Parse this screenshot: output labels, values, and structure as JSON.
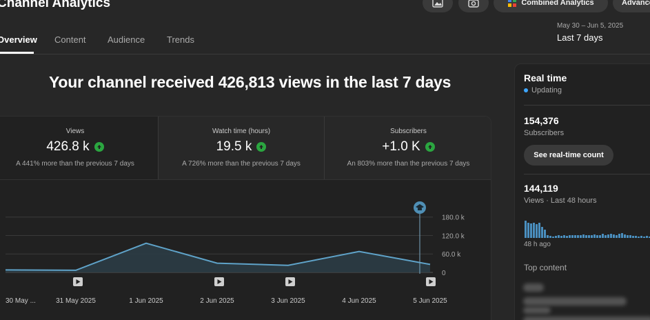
{
  "header": {
    "title": "Channel Analytics",
    "icon_buttons": [
      "image-icon",
      "camera-icon"
    ],
    "combined_analytics_label": "Combined Analytics",
    "advanced_label": "Advanced"
  },
  "tabs": [
    {
      "label": "Overview",
      "active": true
    },
    {
      "label": "Content",
      "active": false
    },
    {
      "label": "Audience",
      "active": false
    },
    {
      "label": "Trends",
      "active": false
    }
  ],
  "date_picker": {
    "range": "May 30 – Jun 5, 2025",
    "label": "Last 7 days"
  },
  "headline": "Your channel received 426,813 views in the last 7 days",
  "metrics": [
    {
      "label": "Views",
      "value": "426.8 k",
      "trend": "up",
      "compare": "A 441% more than the previous 7 days",
      "selected": false
    },
    {
      "label": "Watch time (hours)",
      "value": "19.5 k",
      "trend": "up",
      "compare": "A 726% more than the previous 7 days",
      "selected": true
    },
    {
      "label": "Subscribers",
      "value": "+1.0 K",
      "trend": "up",
      "compare": "An 803% more than the previous 7 days",
      "selected": true
    }
  ],
  "chart_data": {
    "type": "area",
    "x": [
      "30 May ...",
      "31 May 2025",
      "1 Jun 2025",
      "2 Jun 2025",
      "3 Jun 2025",
      "4 Jun 2025",
      "5 Jun 2025"
    ],
    "series": [
      {
        "values": [
          8000,
          7000,
          95000,
          30000,
          23000,
          68000,
          26000
        ]
      }
    ],
    "y_ticks": [
      "180.0 k",
      "120.0 k",
      "60.0 k",
      "0"
    ],
    "ylim": [
      0,
      200000
    ],
    "grid": true,
    "line_color": "#5fa3c9",
    "fill_color": "#2b3d47",
    "video_markers_at": [
      1,
      3,
      4,
      6
    ]
  },
  "realtime": {
    "title": "Real time",
    "status": "Updating",
    "subscribers_count": "154,376",
    "subscribers_label": "Subscribers",
    "button_label": "See real-time count",
    "views_count": "144,119",
    "views_label": "Views · Last 48 hours",
    "hist_values": [
      0.85,
      0.75,
      0.7,
      0.72,
      0.68,
      0.72,
      0.55,
      0.4,
      0.12,
      0.1,
      0.08,
      0.1,
      0.12,
      0.1,
      0.12,
      0.1,
      0.12,
      0.15,
      0.12,
      0.15,
      0.15,
      0.18,
      0.15,
      0.12,
      0.15,
      0.18,
      0.15,
      0.15,
      0.2,
      0.15,
      0.18,
      0.2,
      0.18,
      0.15,
      0.2,
      0.22,
      0.18,
      0.15,
      0.12,
      0.1,
      0.1,
      0.08,
      0.1,
      0.08,
      0.1,
      0.08,
      0.1,
      0.1
    ],
    "hist_caption": "48 h ago",
    "top_content_label": "Top content"
  },
  "colors": {
    "accent_blue": "#3ea6ff",
    "up_green": "#2ba640",
    "background": "#272727"
  }
}
